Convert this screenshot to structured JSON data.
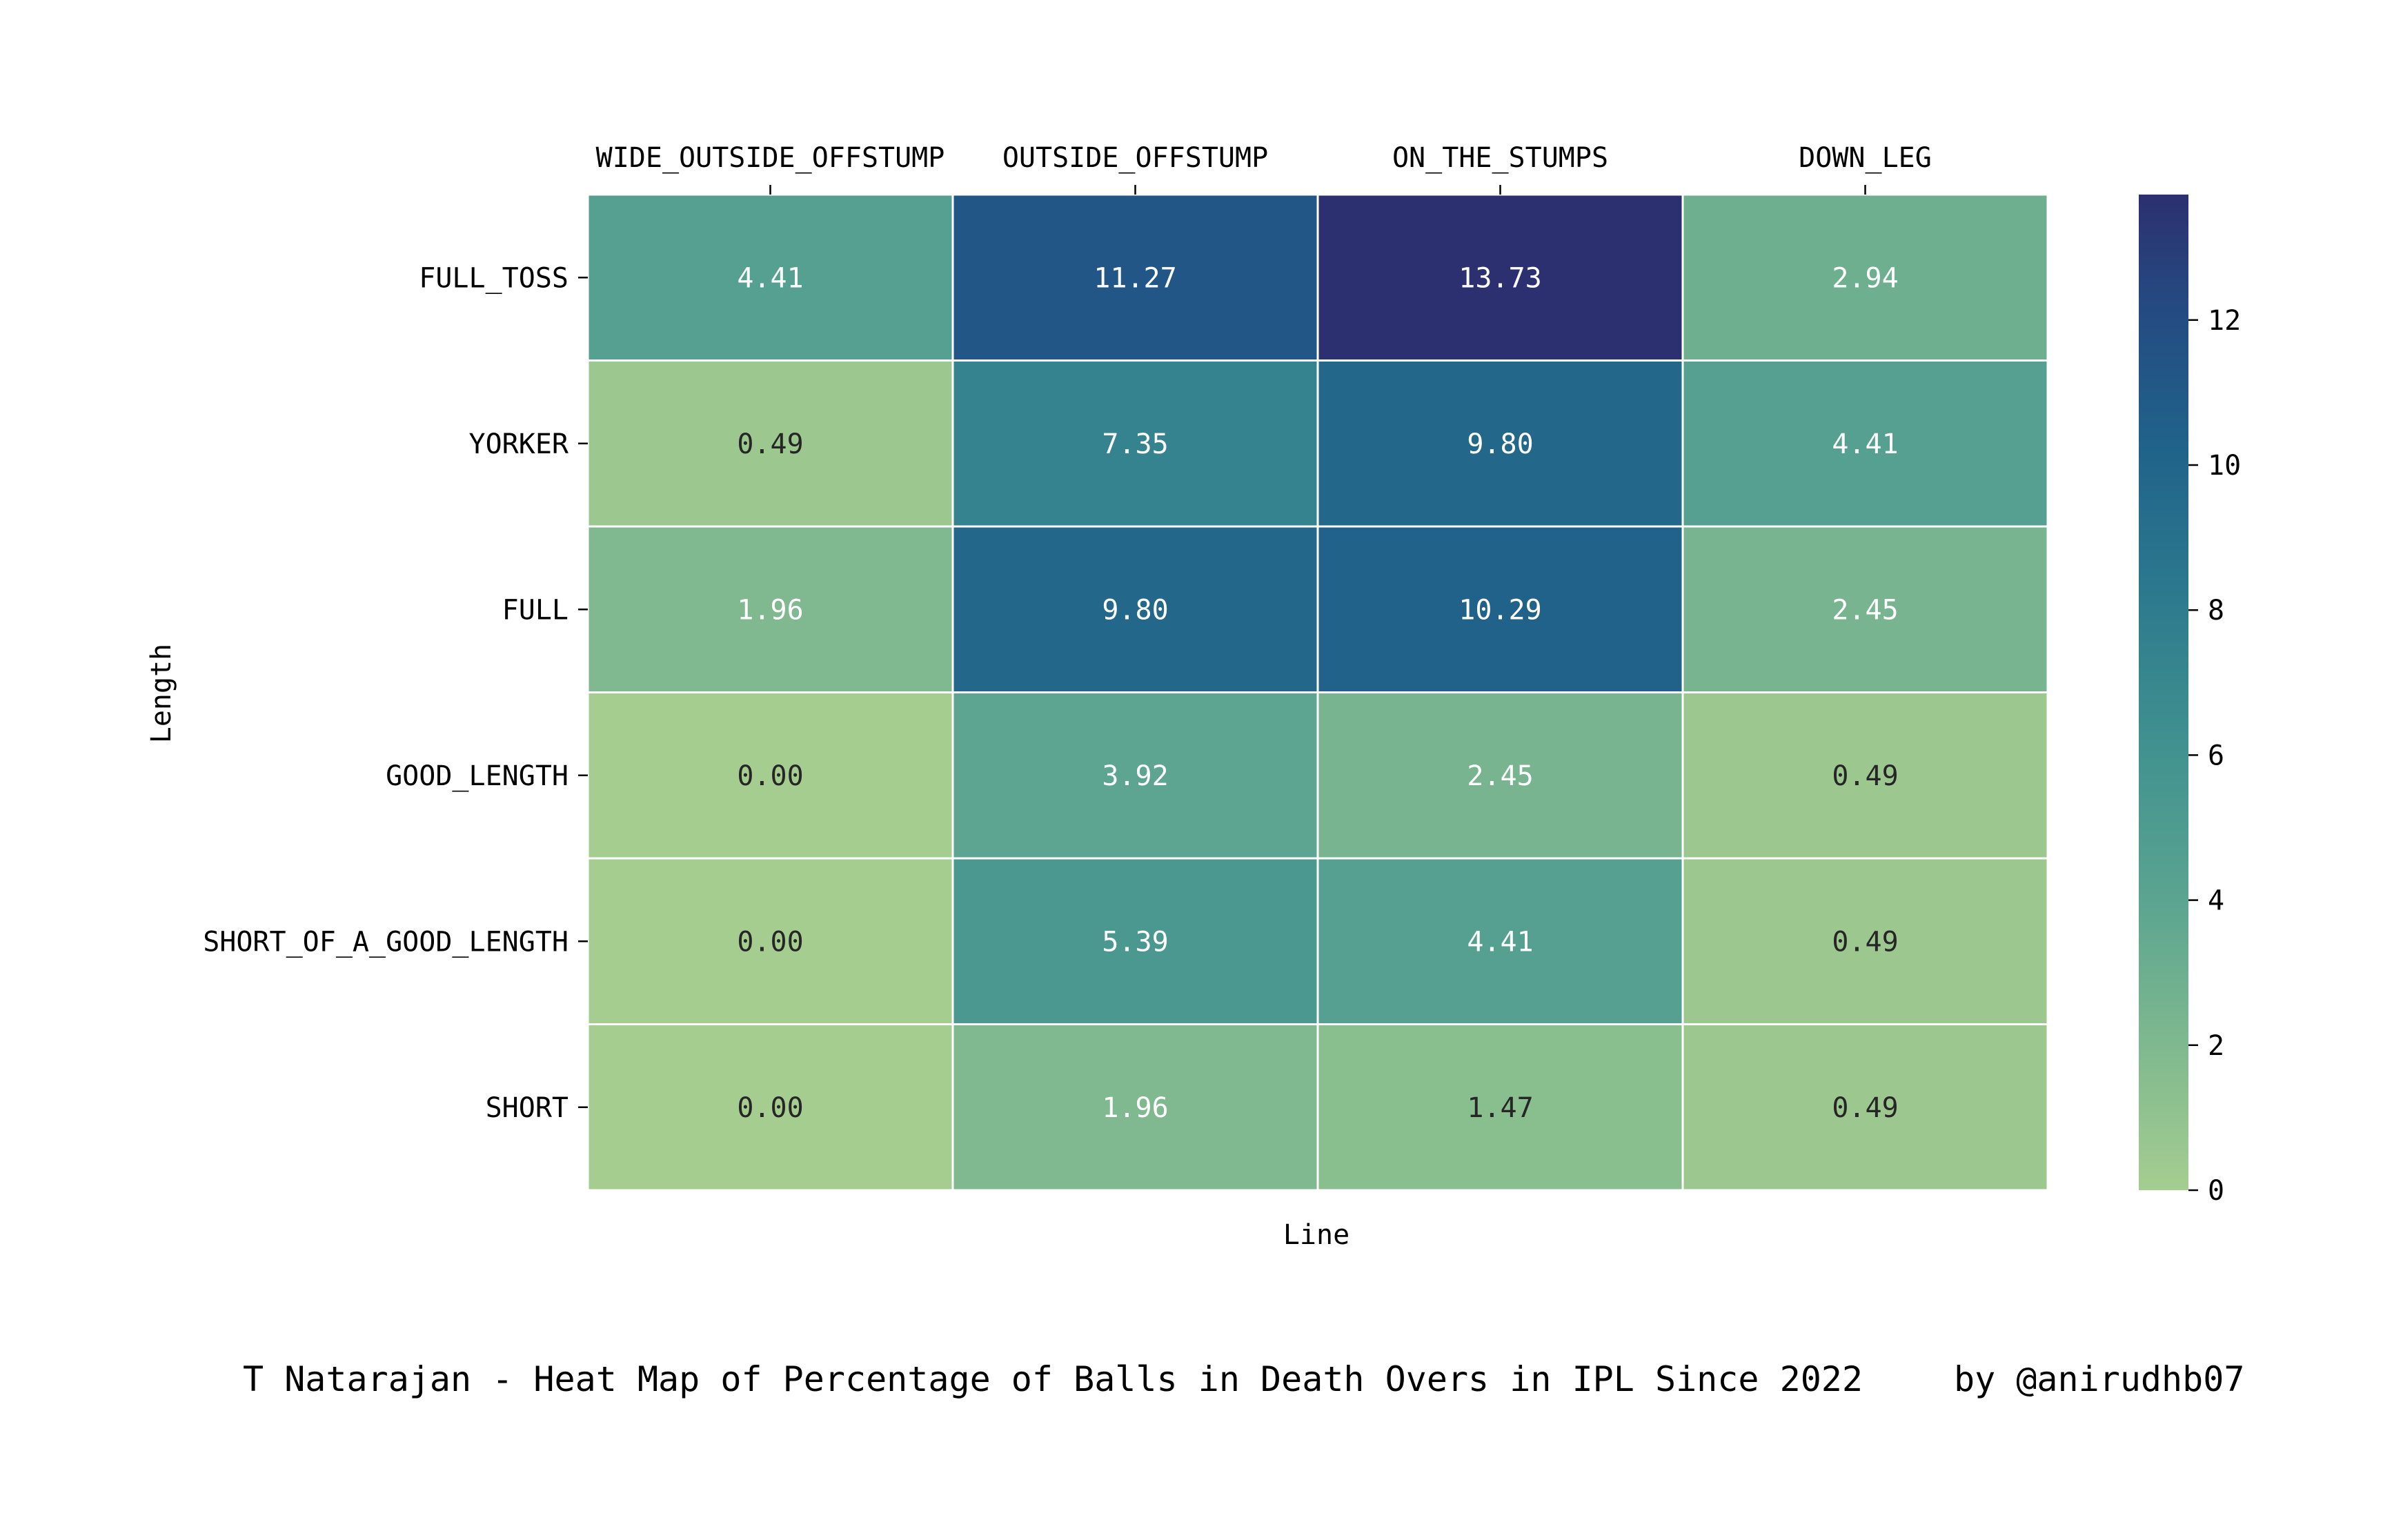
{
  "chart_data": {
    "type": "heatmap",
    "x_categories": [
      "WIDE_OUTSIDE_OFFSTUMP",
      "OUTSIDE_OFFSTUMP",
      "ON_THE_STUMPS",
      "DOWN_LEG"
    ],
    "y_categories": [
      "FULL_TOSS",
      "YORKER",
      "FULL",
      "GOOD_LENGTH",
      "SHORT_OF_A_GOOD_LENGTH",
      "SHORT"
    ],
    "values": [
      [
        4.41,
        11.27,
        13.73,
        2.94
      ],
      [
        0.49,
        7.35,
        9.8,
        4.41
      ],
      [
        1.96,
        9.8,
        10.29,
        2.45
      ],
      [
        0.0,
        3.92,
        2.45,
        0.49
      ],
      [
        0.0,
        5.39,
        4.41,
        0.49
      ],
      [
        0.0,
        1.96,
        1.47,
        0.49
      ]
    ],
    "cell_labels": [
      [
        "4.41",
        "11.27",
        "13.73",
        "2.94"
      ],
      [
        "0.49",
        "7.35",
        "9.80",
        "4.41"
      ],
      [
        "1.96",
        "9.80",
        "10.29",
        "2.45"
      ],
      [
        "0.00",
        "3.92",
        "2.45",
        "0.49"
      ],
      [
        "0.00",
        "5.39",
        "4.41",
        "0.49"
      ],
      [
        "0.00",
        "1.96",
        "1.47",
        "0.49"
      ]
    ],
    "xlabel": "Line",
    "ylabel": "Length",
    "x_tick_position": "top",
    "colormap": "crest",
    "color_range": [
      0,
      13.73
    ],
    "colorbar_ticks": [
      0,
      2,
      4,
      6,
      8,
      10,
      12
    ],
    "colorbar_tick_labels": [
      "0",
      "2",
      "4",
      "6",
      "8",
      "10",
      "12"
    ],
    "legend_placement": "right",
    "grid": false
  },
  "caption": {
    "text": "T Natarajan - Heat Map of Percentage of Balls in Death Overs in IPL Since 2022",
    "credit": "by @anirudhb07"
  }
}
